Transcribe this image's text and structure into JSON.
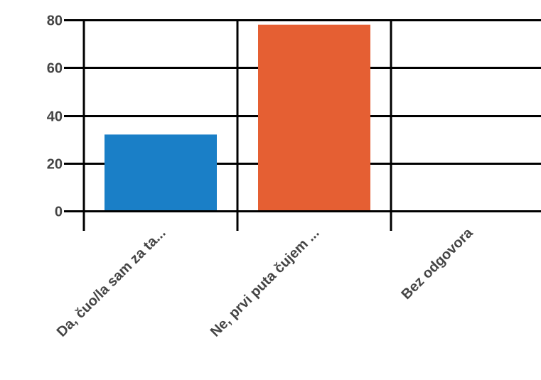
{
  "chart_data": {
    "type": "bar",
    "categories": [
      "Da, čuo/la sam za ta...",
      "Ne, prvi puta čujem ...",
      "Bez odgovora"
    ],
    "values": [
      32,
      78,
      0
    ],
    "colors": [
      "#1a7fc7",
      "#e55f33",
      "#999999"
    ],
    "ylim": [
      0,
      80
    ],
    "yticks": [
      0,
      20,
      40,
      60,
      80
    ],
    "grid": true,
    "legend": "none",
    "title": "",
    "xlabel": "",
    "ylabel": ""
  }
}
